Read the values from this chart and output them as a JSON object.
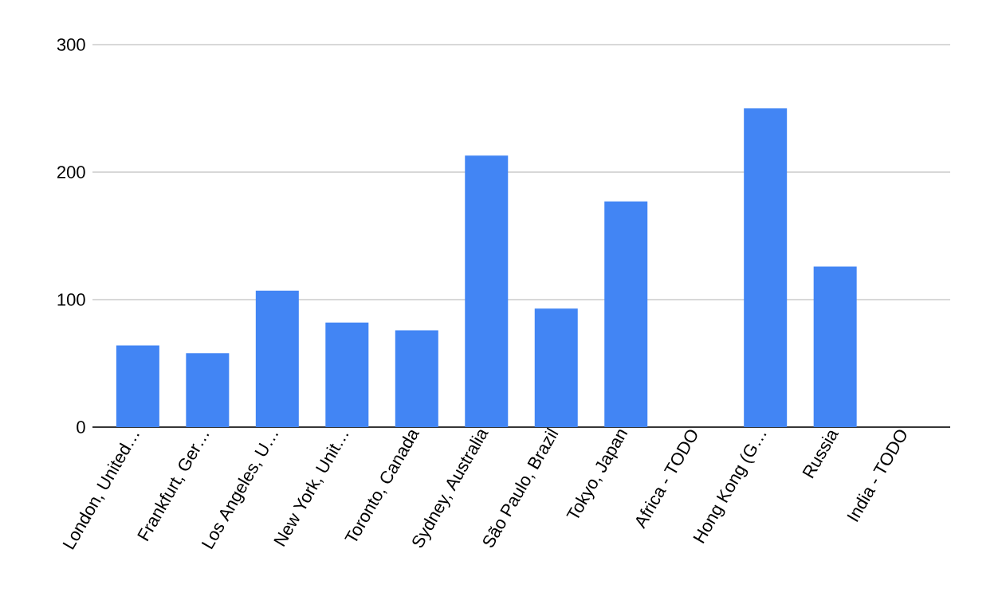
{
  "chart_data": {
    "type": "bar",
    "categories": [
      "London, United…",
      "Frankfurt, Ger…",
      "Los Angeles, U…",
      "New York, Unit…",
      "Toronto, Canada",
      "Sydney, Australia",
      "São Paulo, Brazil",
      "Tokyo, Japan",
      "Africa - TODO",
      "Hong Kong (G…",
      "Russia",
      "India - TODO"
    ],
    "values": [
      64,
      58,
      107,
      82,
      76,
      213,
      93,
      177,
      null,
      250,
      126,
      null
    ],
    "color": "#4285f4",
    "ylim": [
      0,
      300
    ],
    "yticks": [
      0,
      100,
      200,
      300
    ],
    "grid": "y"
  }
}
